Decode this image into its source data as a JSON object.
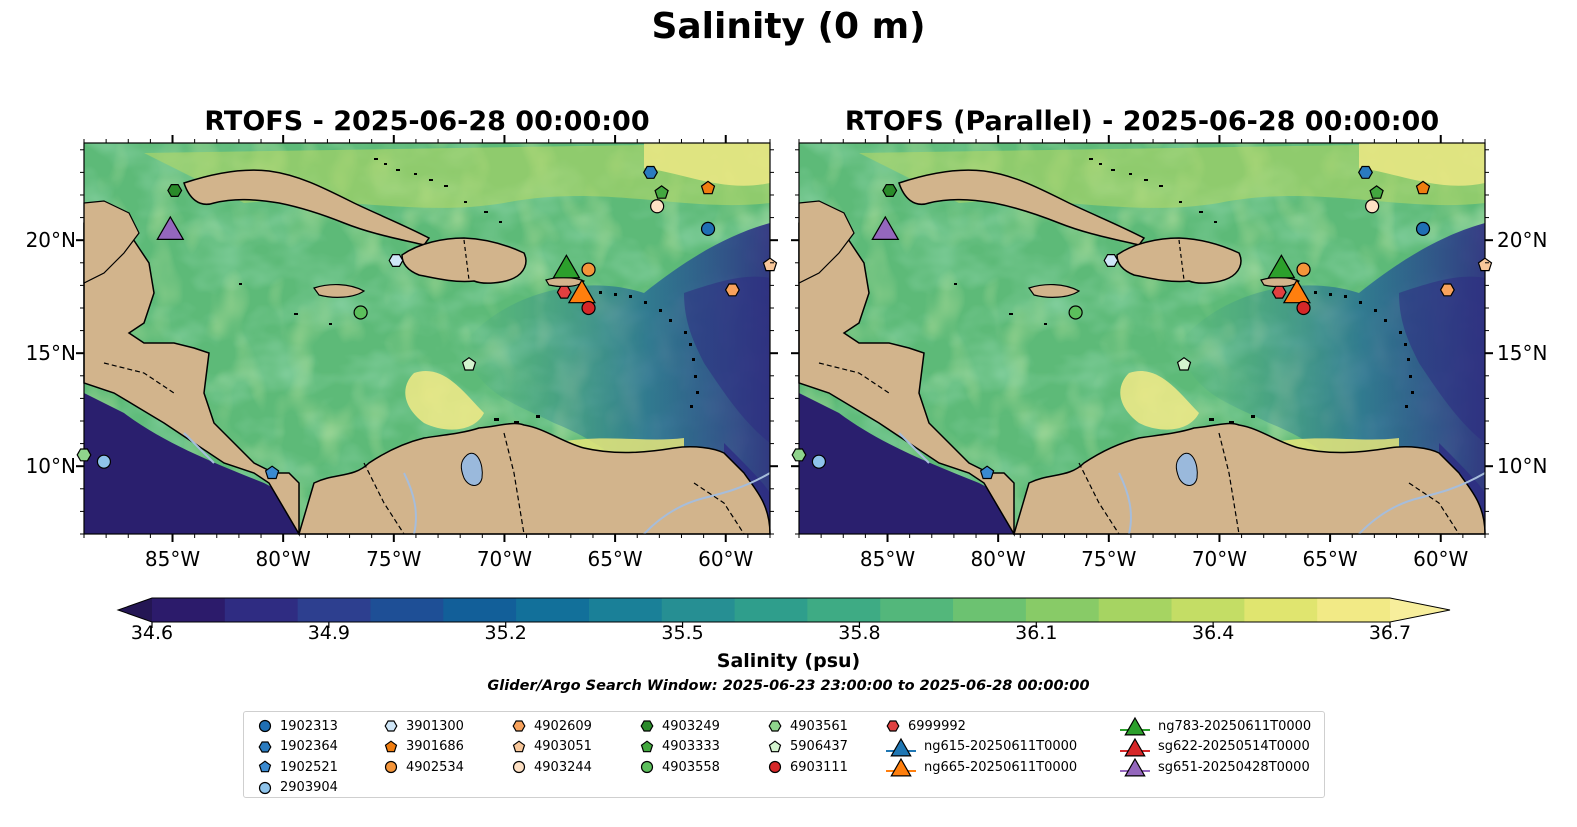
{
  "suptitle": "Salinity (0 m)",
  "panels": [
    {
      "title": "RTOFS - 2025-06-28 00:00:00"
    },
    {
      "title": "RTOFS (Parallel) - 2025-06-28 00:00:00"
    }
  ],
  "map": {
    "lon_ticks": [
      "85°W",
      "80°W",
      "75°W",
      "70°W",
      "65°W",
      "60°W"
    ],
    "lon_values": [
      -85,
      -80,
      -75,
      -70,
      -65,
      -60
    ],
    "lat_ticks": [
      "20°N",
      "15°N",
      "10°N"
    ],
    "lat_values": [
      20,
      15,
      10
    ],
    "extent": {
      "lon_min": -89,
      "lon_max": -58,
      "lat_min": 7,
      "lat_max": 24.3
    },
    "land_color": "#d2b48c",
    "deep_ocean_color": "#2a1f6e"
  },
  "colorbar": {
    "label": "Salinity (psu)",
    "ticks": [
      "34.6",
      "34.9",
      "35.2",
      "35.5",
      "35.8",
      "36.1",
      "36.4",
      "36.7"
    ],
    "min": 34.6,
    "max": 36.7,
    "colors": [
      "#2c1b6b",
      "#2f2c82",
      "#2d3f8f",
      "#1e4f96",
      "#125f99",
      "#12709a",
      "#1a8098",
      "#268f93",
      "#2f9e8c",
      "#3eab84",
      "#53b77b",
      "#6cc271",
      "#88cb67",
      "#a6d462",
      "#c4dd65",
      "#e0e56f",
      "#f2ea86"
    ]
  },
  "search_window": "Glider/Argo Search Window: 2025-06-23 23:00:00 to 2025-06-28 00:00:00",
  "legend": {
    "columns": [
      [
        {
          "label": "1902313",
          "marker": "circle",
          "color": "#1f6fb4"
        },
        {
          "label": "1902364",
          "marker": "hexagon",
          "color": "#2a7bbf"
        },
        {
          "label": "1902521",
          "marker": "pentagon",
          "color": "#3a8ad0"
        },
        {
          "label": "2903904",
          "marker": "circle",
          "color": "#8ec3ea"
        }
      ],
      [
        {
          "label": "3901300",
          "marker": "hexagon",
          "color": "#cfe6f7"
        },
        {
          "label": "3901686",
          "marker": "pentagon",
          "color": "#f07d10"
        },
        {
          "label": "4902534",
          "marker": "circle",
          "color": "#f4953a"
        }
      ],
      [
        {
          "label": "4902609",
          "marker": "hexagon",
          "color": "#f7a25c"
        },
        {
          "label": "4903051",
          "marker": "pentagon",
          "color": "#f8c79a"
        },
        {
          "label": "4903244",
          "marker": "circle",
          "color": "#fde0c4"
        }
      ],
      [
        {
          "label": "4903249",
          "marker": "hexagon",
          "color": "#2a8a2a"
        },
        {
          "label": "4903333",
          "marker": "pentagon",
          "color": "#43a83f"
        },
        {
          "label": "4903558",
          "marker": "circle",
          "color": "#5cbf5c"
        }
      ],
      [
        {
          "label": "4903561",
          "marker": "hexagon",
          "color": "#8fd48c"
        },
        {
          "label": "5906437",
          "marker": "pentagon",
          "color": "#d4f4cf"
        },
        {
          "label": "6903111",
          "marker": "circle",
          "color": "#d62728"
        }
      ],
      [
        {
          "label": "6999992",
          "marker": "hexagon",
          "color": "#e04040"
        },
        {
          "label": "ng615-20250611T0000",
          "marker": "triangle",
          "color": "#1f77b4"
        },
        {
          "label": "ng665-20250611T0000",
          "marker": "triangle",
          "color": "#ff7f0e"
        }
      ],
      [
        {
          "label": "ng783-20250611T0000",
          "marker": "triangle",
          "color": "#2ca02c"
        },
        {
          "label": "sg622-20250514T0000",
          "marker": "triangle",
          "color": "#d62728"
        },
        {
          "label": "sg651-20250428T0000",
          "marker": "triangle",
          "color": "#9467bd"
        }
      ]
    ]
  },
  "markers": [
    {
      "name": "sg651",
      "marker": "triangle-lg",
      "color": "#9467bd",
      "lon": -85.1,
      "lat": 20.5
    },
    {
      "name": "ng783",
      "marker": "triangle-lg",
      "color": "#2ca02c",
      "lon": -67.2,
      "lat": 18.8
    },
    {
      "name": "ng665",
      "marker": "triangle-lg",
      "color": "#ff7f0e",
      "lon": -66.5,
      "lat": 17.7
    },
    {
      "name": "4903249",
      "marker": "hexagon",
      "color": "#2a8a2a",
      "lon": -84.9,
      "lat": 22.2
    },
    {
      "name": "1902364",
      "marker": "hexagon",
      "color": "#2a7bbf",
      "lon": -63.4,
      "lat": 23.0
    },
    {
      "name": "4903333",
      "marker": "pentagon",
      "color": "#43a83f",
      "lon": -62.9,
      "lat": 22.1
    },
    {
      "name": "3901686",
      "marker": "pentagon",
      "color": "#f07d10",
      "lon": -60.8,
      "lat": 22.3
    },
    {
      "name": "4903244",
      "marker": "circle",
      "color": "#fde0c4",
      "lon": -63.1,
      "lat": 21.5
    },
    {
      "name": "1902313",
      "marker": "circle",
      "color": "#1f6fb4",
      "lon": -60.8,
      "lat": 20.5
    },
    {
      "name": "3901300",
      "marker": "hexagon",
      "color": "#cfe6f7",
      "lon": -74.9,
      "lat": 19.1
    },
    {
      "name": "4902534",
      "marker": "circle",
      "color": "#f4953a",
      "lon": -66.2,
      "lat": 18.7
    },
    {
      "name": "6999992",
      "marker": "hexagon",
      "color": "#e04040",
      "lon": -67.3,
      "lat": 17.7
    },
    {
      "name": "6903111",
      "marker": "circle",
      "color": "#d62728",
      "lon": -66.2,
      "lat": 17.0
    },
    {
      "name": "4903558",
      "marker": "circle",
      "color": "#5cbf5c",
      "lon": -76.5,
      "lat": 16.8
    },
    {
      "name": "4902609",
      "marker": "hexagon",
      "color": "#f7a25c",
      "lon": -59.7,
      "lat": 17.8
    },
    {
      "name": "4903051",
      "marker": "pentagon",
      "color": "#f8c79a",
      "lon": -58.0,
      "lat": 18.9
    },
    {
      "name": "5906437",
      "marker": "pentagon",
      "color": "#d4f4cf",
      "lon": -71.6,
      "lat": 14.5
    },
    {
      "name": "2903904",
      "marker": "circle",
      "color": "#8ec3ea",
      "lon": -88.1,
      "lat": 10.2
    },
    {
      "name": "4903561",
      "marker": "hexagon",
      "color": "#8fd48c",
      "lon": -89.0,
      "lat": 10.5
    },
    {
      "name": "1902521",
      "marker": "pentagon",
      "color": "#3a8ad0",
      "lon": -80.5,
      "lat": 9.7
    }
  ]
}
